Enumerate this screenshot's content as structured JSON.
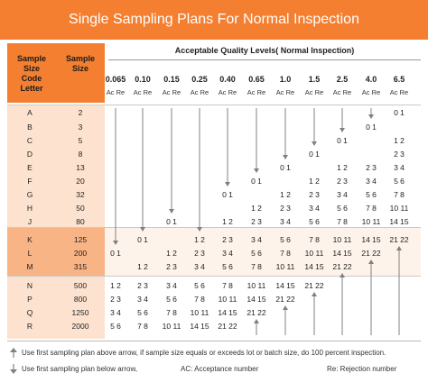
{
  "title": "Single Sampling Plans For Normal Inspection",
  "headers": {
    "code_letter": [
      "Sample",
      "Size",
      "Code",
      "Letter"
    ],
    "sample_size": [
      "Sample",
      "Size"
    ],
    "aql_title": "Acceptable Quality Levels( Normal Inspection)",
    "ac_re": "Ac Re"
  },
  "aql_levels": [
    "0.065",
    "0.10",
    "0.15",
    "0.25",
    "0.40",
    "0.65",
    "1.0",
    "1.5",
    "2.5",
    "4.0",
    "6.5"
  ],
  "rows": [
    {
      "letter": "A",
      "size": "2"
    },
    {
      "letter": "B",
      "size": "3"
    },
    {
      "letter": "C",
      "size": "5"
    },
    {
      "letter": "D",
      "size": "8"
    },
    {
      "letter": "E",
      "size": "13"
    },
    {
      "letter": "F",
      "size": "20"
    },
    {
      "letter": "G",
      "size": "32"
    },
    {
      "letter": "H",
      "size": "50"
    },
    {
      "letter": "J",
      "size": "80"
    },
    {
      "letter": "K",
      "size": "125"
    },
    {
      "letter": "L",
      "size": "200"
    },
    {
      "letter": "M",
      "size": "315"
    },
    {
      "letter": "N",
      "size": "500"
    },
    {
      "letter": "P",
      "size": "800"
    },
    {
      "letter": "Q",
      "size": "1250"
    },
    {
      "letter": "R",
      "size": "2000"
    }
  ],
  "cells": [
    {
      "r": 0,
      "c": 10,
      "t": "0 1"
    },
    {
      "r": 1,
      "c": 9,
      "t": "0 1"
    },
    {
      "r": 2,
      "c": 8,
      "t": "0 1"
    },
    {
      "r": 2,
      "c": 10,
      "t": "1 2"
    },
    {
      "r": 3,
      "c": 7,
      "t": "0 1"
    },
    {
      "r": 3,
      "c": 10,
      "t": "2 3"
    },
    {
      "r": 4,
      "c": 6,
      "t": "0 1"
    },
    {
      "r": 4,
      "c": 8,
      "t": "1 2"
    },
    {
      "r": 4,
      "c": 9,
      "t": "2 3"
    },
    {
      "r": 4,
      "c": 10,
      "t": "3 4"
    },
    {
      "r": 5,
      "c": 5,
      "t": "0 1"
    },
    {
      "r": 5,
      "c": 7,
      "t": "1 2"
    },
    {
      "r": 5,
      "c": 8,
      "t": "2 3"
    },
    {
      "r": 5,
      "c": 9,
      "t": "3 4"
    },
    {
      "r": 5,
      "c": 10,
      "t": "5 6"
    },
    {
      "r": 6,
      "c": 4,
      "t": "0 1"
    },
    {
      "r": 6,
      "c": 6,
      "t": "1 2"
    },
    {
      "r": 6,
      "c": 7,
      "t": "2 3"
    },
    {
      "r": 6,
      "c": 8,
      "t": "3 4"
    },
    {
      "r": 6,
      "c": 9,
      "t": "5 6"
    },
    {
      "r": 6,
      "c": 10,
      "t": "7 8"
    },
    {
      "r": 7,
      "c": 5,
      "t": "1 2"
    },
    {
      "r": 7,
      "c": 6,
      "t": "2 3"
    },
    {
      "r": 7,
      "c": 7,
      "t": "3 4"
    },
    {
      "r": 7,
      "c": 8,
      "t": "5 6"
    },
    {
      "r": 7,
      "c": 9,
      "t": "7 8"
    },
    {
      "r": 7,
      "c": 10,
      "t": "10 11"
    },
    {
      "r": 8,
      "c": 2,
      "t": "0 1"
    },
    {
      "r": 8,
      "c": 4,
      "t": "1 2"
    },
    {
      "r": 8,
      "c": 5,
      "t": "2 3"
    },
    {
      "r": 8,
      "c": 6,
      "t": "3 4"
    },
    {
      "r": 8,
      "c": 7,
      "t": "5 6"
    },
    {
      "r": 8,
      "c": 8,
      "t": "7 8"
    },
    {
      "r": 8,
      "c": 9,
      "t": "10 11"
    },
    {
      "r": 8,
      "c": 10,
      "t": "14 15"
    },
    {
      "r": 9,
      "c": 1,
      "t": "0 1"
    },
    {
      "r": 9,
      "c": 3,
      "t": "1 2"
    },
    {
      "r": 9,
      "c": 4,
      "t": "2 3"
    },
    {
      "r": 9,
      "c": 5,
      "t": "3 4"
    },
    {
      "r": 9,
      "c": 6,
      "t": "5 6"
    },
    {
      "r": 9,
      "c": 7,
      "t": "7 8"
    },
    {
      "r": 9,
      "c": 8,
      "t": "10 11"
    },
    {
      "r": 9,
      "c": 9,
      "t": "14 15"
    },
    {
      "r": 9,
      "c": 10,
      "t": "21 22"
    },
    {
      "r": 10,
      "c": 0,
      "t": "0 1"
    },
    {
      "r": 10,
      "c": 2,
      "t": "1 2"
    },
    {
      "r": 10,
      "c": 3,
      "t": "2 3"
    },
    {
      "r": 10,
      "c": 4,
      "t": "3 4"
    },
    {
      "r": 10,
      "c": 5,
      "t": "5 6"
    },
    {
      "r": 10,
      "c": 6,
      "t": "7 8"
    },
    {
      "r": 10,
      "c": 7,
      "t": "10 11"
    },
    {
      "r": 10,
      "c": 8,
      "t": "14 15"
    },
    {
      "r": 10,
      "c": 9,
      "t": "21 22"
    },
    {
      "r": 11,
      "c": 1,
      "t": "1 2"
    },
    {
      "r": 11,
      "c": 2,
      "t": "2 3"
    },
    {
      "r": 11,
      "c": 3,
      "t": "3 4"
    },
    {
      "r": 11,
      "c": 4,
      "t": "5 6"
    },
    {
      "r": 11,
      "c": 5,
      "t": "7 8"
    },
    {
      "r": 11,
      "c": 6,
      "t": "10 11"
    },
    {
      "r": 11,
      "c": 7,
      "t": "14 15"
    },
    {
      "r": 11,
      "c": 8,
      "t": "21 22"
    },
    {
      "r": 12,
      "c": 0,
      "t": "1 2"
    },
    {
      "r": 12,
      "c": 1,
      "t": "2 3"
    },
    {
      "r": 12,
      "c": 2,
      "t": "3 4"
    },
    {
      "r": 12,
      "c": 3,
      "t": "5 6"
    },
    {
      "r": 12,
      "c": 4,
      "t": "7 8"
    },
    {
      "r": 12,
      "c": 5,
      "t": "10 11"
    },
    {
      "r": 12,
      "c": 6,
      "t": "14 15"
    },
    {
      "r": 12,
      "c": 7,
      "t": "21 22"
    },
    {
      "r": 13,
      "c": 0,
      "t": "2 3"
    },
    {
      "r": 13,
      "c": 1,
      "t": "3 4"
    },
    {
      "r": 13,
      "c": 2,
      "t": "5 6"
    },
    {
      "r": 13,
      "c": 3,
      "t": "7 8"
    },
    {
      "r": 13,
      "c": 4,
      "t": "10 11"
    },
    {
      "r": 13,
      "c": 5,
      "t": "14 15"
    },
    {
      "r": 13,
      "c": 6,
      "t": "21 22"
    },
    {
      "r": 14,
      "c": 0,
      "t": "3 4"
    },
    {
      "r": 14,
      "c": 1,
      "t": "5 6"
    },
    {
      "r": 14,
      "c": 2,
      "t": "7 8"
    },
    {
      "r": 14,
      "c": 3,
      "t": "10 11"
    },
    {
      "r": 14,
      "c": 4,
      "t": "14 15"
    },
    {
      "r": 14,
      "c": 5,
      "t": "21 22"
    },
    {
      "r": 15,
      "c": 0,
      "t": "5 6"
    },
    {
      "r": 15,
      "c": 1,
      "t": "7 8"
    },
    {
      "r": 15,
      "c": 2,
      "t": "10 11"
    },
    {
      "r": 15,
      "c": 3,
      "t": "14 15"
    },
    {
      "r": 15,
      "c": 4,
      "t": "21 22"
    }
  ],
  "legend": {
    "arrow_up_text": "Use first sampling plan above arrow, if sample size equals or exceeds lot or batch size, do 100 percent inspection.",
    "arrow_down_text": "Use first sampling plan below arrow,",
    "ac_text": "AC: Acceptance number",
    "re_text": "Re: Rejection number"
  },
  "colors": {
    "header_orange": "#f47f30",
    "band_light": "#fde3cf",
    "band_mid": "#f9b486",
    "arrow_gray": "#808080"
  }
}
